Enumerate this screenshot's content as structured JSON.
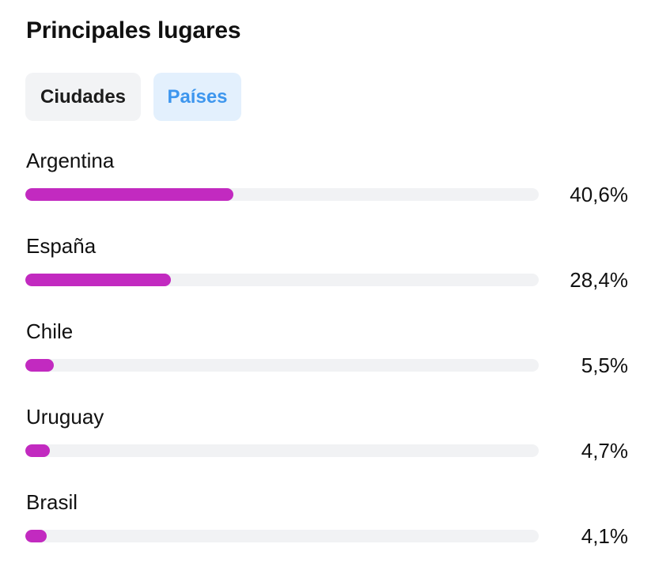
{
  "header": {
    "title": "Principales lugares"
  },
  "tabs": [
    {
      "label": "Ciudades",
      "selected": false
    },
    {
      "label": "Países",
      "selected": true
    }
  ],
  "colors": {
    "bar_fill": "#c22ac0",
    "bar_track": "#f1f2f4",
    "tab_selected_bg": "#e3f0fd",
    "tab_selected_text": "#3d96ee",
    "tab_bg": "#f2f3f5"
  },
  "locations": [
    {
      "name": "Argentina",
      "percent_label": "40,6%",
      "fraction": 0.406
    },
    {
      "name": "España",
      "percent_label": "28,4%",
      "fraction": 0.284
    },
    {
      "name": "Chile",
      "percent_label": "5,5%",
      "fraction": 0.055
    },
    {
      "name": "Uruguay",
      "percent_label": "4,7%",
      "fraction": 0.047
    },
    {
      "name": "Brasil",
      "percent_label": "4,1%",
      "fraction": 0.041
    }
  ]
}
